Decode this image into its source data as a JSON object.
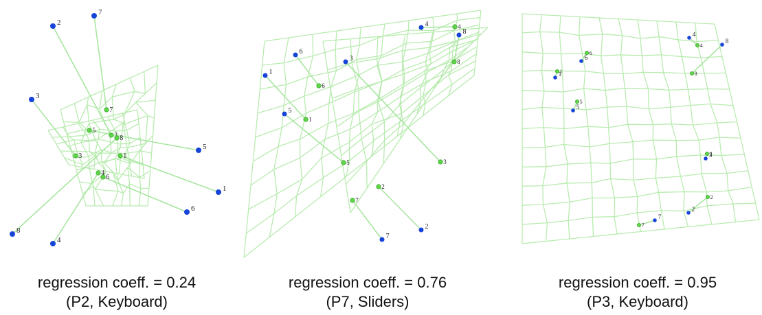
{
  "figure": {
    "panels": [
      {
        "caption_line1": "regression coeff. = 0.24",
        "caption_line2": "(P2, Keyboard)",
        "markers": [
          {
            "label": "2",
            "target": [
              77,
              38
            ],
            "result": [
              162,
              197
            ]
          },
          {
            "label": "7",
            "target": [
              137,
              23
            ],
            "result": [
              155,
              160
            ]
          },
          {
            "label": "3",
            "target": [
              46,
              145
            ],
            "result": [
              110,
              227
            ]
          },
          {
            "label": "5",
            "target": [
              289,
              219
            ],
            "result": [
              130,
              190
            ]
          },
          {
            "label": "1",
            "target": [
              318,
              280
            ],
            "result": [
              175,
              227
            ]
          },
          {
            "label": "6",
            "target": [
              272,
              309
            ],
            "result": [
              150,
              258
            ]
          },
          {
            "label": "8",
            "target": [
              18,
              341
            ],
            "result": [
              170,
              201
            ]
          },
          {
            "label": "4",
            "target": [
              77,
              355
            ],
            "result": [
              143,
              252
            ]
          }
        ]
      },
      {
        "caption_line1": "regression coeff. = 0.76",
        "caption_line2": "(P7, Sliders)",
        "markers": [
          {
            "label": "4",
            "target": [
              613,
              40
            ],
            "result": [
              662,
              39
            ]
          },
          {
            "label": "8",
            "target": [
              668,
              51
            ],
            "result": [
              661,
              90
            ]
          },
          {
            "label": "6",
            "target": [
              430,
              80
            ],
            "result": [
              464,
              125
            ]
          },
          {
            "label": "3",
            "target": [
              503,
              90
            ],
            "result": [
              641,
              236
            ]
          },
          {
            "label": "1",
            "target": [
              386,
              110
            ],
            "result": [
              445,
              174
            ]
          },
          {
            "label": "5",
            "target": [
              414,
              166
            ],
            "result": [
              500,
              237
            ]
          },
          {
            "label": "2",
            "target": [
              613,
              335
            ],
            "result": [
              551,
              272
            ]
          },
          {
            "label": "7",
            "target": [
              556,
              349
            ],
            "result": [
              513,
              292
            ]
          }
        ]
      },
      {
        "caption_line1": "regression coeff. = 0.95",
        "caption_line2": "(P3, Keyboard)",
        "markers": [
          {
            "label": "4",
            "target": [
              1003,
              55
            ],
            "result": [
              1015,
              66
            ]
          },
          {
            "label": "8",
            "target": [
              1051,
              65
            ],
            "result": [
              1007,
              107
            ]
          },
          {
            "label": "6",
            "target": [
              846,
              89
            ],
            "result": [
              854,
              77
            ]
          },
          {
            "label": "1",
            "target": [
              808,
              113
            ],
            "result": [
              811,
              104
            ]
          },
          {
            "label": "5",
            "target": [
              834,
              161
            ],
            "result": [
              840,
              148
            ]
          },
          {
            "label": "3",
            "target": [
              1027,
              231
            ],
            "result": [
              1029,
              224
            ]
          },
          {
            "label": "2",
            "target": [
              1002,
              310
            ],
            "result": [
              1030,
              287
            ]
          },
          {
            "label": "7",
            "target": [
              953,
              321
            ],
            "result": [
              930,
              328
            ]
          }
        ]
      }
    ]
  }
}
